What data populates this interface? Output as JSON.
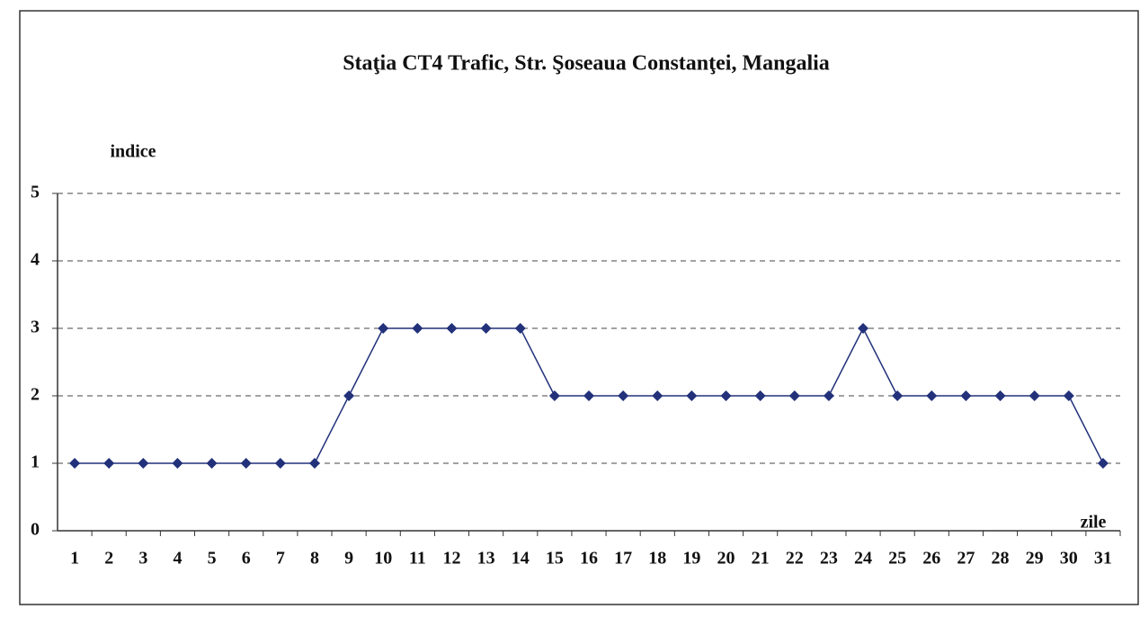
{
  "chart_data": {
    "type": "line",
    "title": "Staţia CT4 Trafic, Str. Şoseaua Constanţei, Mangalia",
    "y_label": "indice",
    "x_label": "zile",
    "categories": [
      "1",
      "2",
      "3",
      "4",
      "5",
      "6",
      "7",
      "8",
      "9",
      "10",
      "11",
      "12",
      "13",
      "14",
      "15",
      "16",
      "17",
      "18",
      "19",
      "20",
      "21",
      "22",
      "23",
      "24",
      "25",
      "26",
      "27",
      "28",
      "29",
      "30",
      "31"
    ],
    "series": [
      {
        "name": "indice",
        "color": "#22317a",
        "values": [
          1,
          1,
          1,
          1,
          1,
          1,
          1,
          1,
          2,
          3,
          3,
          3,
          3,
          3,
          2,
          2,
          2,
          2,
          2,
          2,
          2,
          2,
          2,
          3,
          2,
          2,
          2,
          2,
          2,
          2,
          1
        ]
      }
    ],
    "ylim": [
      0,
      5
    ],
    "yticks": [
      0,
      1,
      2,
      3,
      4,
      5
    ],
    "grid": true
  }
}
